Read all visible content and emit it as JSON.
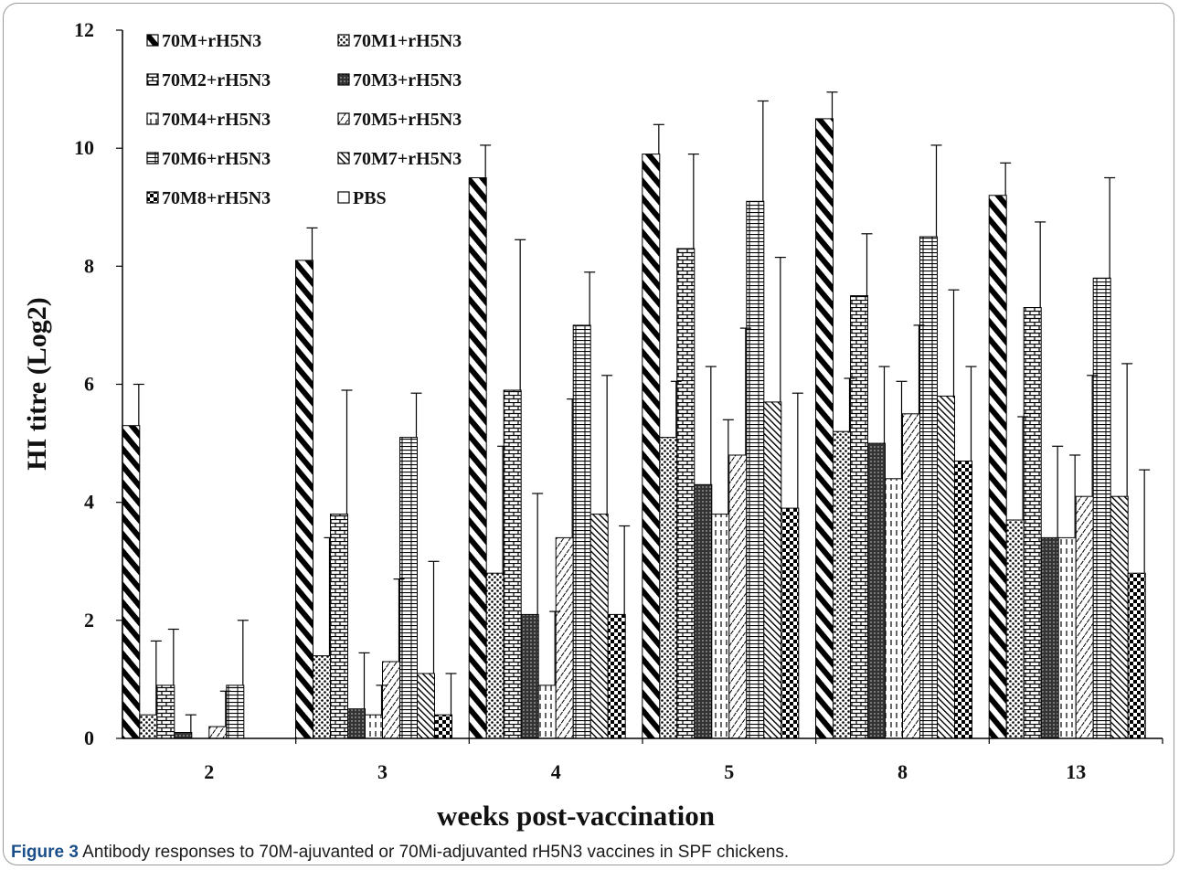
{
  "chart_data": {
    "type": "bar",
    "title": "",
    "xlabel": "weeks post-vaccination",
    "ylabel": "HI titre (Log2)",
    "ylim": [
      0,
      12
    ],
    "yticks": [
      0,
      2,
      4,
      6,
      8,
      10,
      12
    ],
    "categories": [
      "2",
      "3",
      "4",
      "5",
      "8",
      "13"
    ],
    "legend_placement": "top-left",
    "grid": false,
    "series": [
      {
        "name": "70M+rH5N3",
        "pattern": "diag-thick",
        "values": [
          5.3,
          8.1,
          9.5,
          9.9,
          10.5,
          9.2
        ],
        "errors": [
          0.7,
          0.55,
          0.55,
          0.5,
          0.45,
          0.55
        ]
      },
      {
        "name": "70M1+rH5N3",
        "pattern": "dots",
        "values": [
          0.4,
          1.4,
          2.8,
          5.1,
          5.2,
          3.7
        ],
        "errors": [
          1.25,
          2.0,
          2.15,
          0.95,
          0.9,
          1.75
        ]
      },
      {
        "name": "70M2+rH5N3",
        "pattern": "brick",
        "values": [
          0.9,
          3.8,
          5.9,
          8.3,
          7.5,
          7.3
        ],
        "errors": [
          0.95,
          2.1,
          2.55,
          1.6,
          1.05,
          1.45
        ]
      },
      {
        "name": "70M3+rH5N3",
        "pattern": "crosshatch",
        "values": [
          0.1,
          0.5,
          2.1,
          4.3,
          5.0,
          3.4
        ],
        "errors": [
          0.3,
          0.95,
          2.05,
          2.0,
          1.3,
          1.55
        ]
      },
      {
        "name": "70M4+rH5N3",
        "pattern": "vdash",
        "values": [
          0.0,
          0.4,
          0.9,
          3.8,
          4.4,
          3.4
        ],
        "errors": [
          0.0,
          0.5,
          1.25,
          1.6,
          1.65,
          1.4
        ]
      },
      {
        "name": "70M5+rH5N3",
        "pattern": "wavy",
        "values": [
          0.2,
          1.3,
          3.4,
          4.8,
          5.5,
          4.1
        ],
        "errors": [
          0.6,
          1.4,
          2.35,
          2.15,
          1.5,
          2.05
        ]
      },
      {
        "name": "70M6+rH5N3",
        "pattern": "hlines",
        "values": [
          0.9,
          5.1,
          7.0,
          9.1,
          8.5,
          7.8
        ],
        "errors": [
          1.1,
          0.75,
          0.9,
          1.7,
          1.55,
          1.7
        ]
      },
      {
        "name": "70M7+rH5N3",
        "pattern": "diag-thin",
        "values": [
          0.0,
          1.1,
          3.8,
          5.7,
          5.8,
          4.1
        ],
        "errors": [
          0.0,
          1.9,
          2.35,
          2.45,
          1.8,
          2.25
        ]
      },
      {
        "name": "70M8+rH5N3",
        "pattern": "checker",
        "values": [
          0.0,
          0.4,
          2.1,
          3.9,
          4.7,
          2.8
        ],
        "errors": [
          0.0,
          0.7,
          1.5,
          1.95,
          1.6,
          1.75
        ]
      },
      {
        "name": "PBS",
        "pattern": "empty",
        "values": [
          0,
          0,
          0,
          0,
          0,
          0
        ],
        "errors": [
          0,
          0,
          0,
          0,
          0,
          0
        ]
      }
    ]
  },
  "caption": {
    "label": "Figure 3",
    "text": "Antibody responses to 70M-ajuvanted or 70Mi-adjuvanted rH5N3 vaccines in SPF chickens."
  }
}
